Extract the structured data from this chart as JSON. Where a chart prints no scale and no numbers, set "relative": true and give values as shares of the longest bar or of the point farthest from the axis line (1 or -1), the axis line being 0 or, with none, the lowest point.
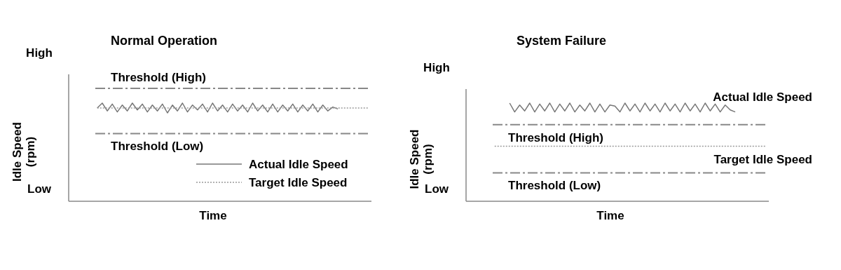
{
  "chart_data": [
    {
      "type": "line",
      "title": "Normal Operation",
      "xlabel": "Time",
      "ylabel": "Idle Speed\n(rpm)",
      "annotations": [
        "High",
        "Low"
      ],
      "relative": true,
      "legend": "bottom right",
      "categories": [
        null,
        null,
        null,
        null,
        null,
        null,
        null,
        null,
        null,
        null,
        null,
        null,
        null,
        null,
        null,
        null,
        null,
        null,
        null,
        null,
        null,
        null,
        null,
        null,
        null,
        null,
        null,
        null,
        null,
        null,
        null,
        null,
        null,
        null,
        null,
        null,
        null,
        null,
        null,
        null,
        null,
        null,
        null,
        null,
        null,
        null,
        null,
        null,
        null,
        null,
        null,
        null,
        null,
        null,
        null,
        null,
        null,
        null,
        null,
        null
      ],
      "ref_lines": [
        {
          "axis": "y",
          "value": 1.15,
          "label": "Threshold (High)",
          "color": "#888888",
          "line_style": "dashed"
        },
        {
          "axis": "y",
          "value": 0.69,
          "label": "Threshold (Low)",
          "color": "#888888",
          "line_style": "dashed"
        }
      ],
      "series": [
        {
          "name": "Actual Idle Speed",
          "color": "#777777",
          "line_style": "solid",
          "values": [
            null,
            null,
            null,
            null,
            null,
            0.95,
            1.0,
            0.92,
            0.99,
            0.91,
            0.98,
            0.92,
            1.0,
            0.93,
            0.99,
            0.91,
            0.98,
            0.92,
            0.99,
            0.9,
            0.98,
            0.92,
            1.0,
            0.91,
            0.98,
            0.93,
            0.99,
            0.91,
            1.0,
            0.92,
            0.98,
            0.91,
            0.99,
            0.92,
            0.98,
            0.91,
            1.0,
            0.92,
            0.98,
            0.91,
            0.99,
            0.91,
            0.98,
            0.92,
            0.99,
            0.91,
            0.98,
            0.92,
            0.99,
            0.91,
            0.98,
            0.92,
            0.96,
            0.94,
            null,
            null,
            null,
            null,
            null,
            null
          ]
        },
        {
          "name": "Target Idle Speed",
          "color": "#999999",
          "line_style": "dotted",
          "values": [
            null,
            null,
            null,
            null,
            null,
            0.95,
            0.95,
            0.95,
            0.95,
            0.95,
            0.95,
            0.95,
            0.95,
            0.95,
            0.95,
            0.95,
            0.95,
            0.95,
            0.95,
            0.95,
            0.95,
            0.95,
            0.95,
            0.95,
            0.95,
            0.95,
            0.95,
            0.95,
            0.95,
            0.95,
            0.95,
            0.95,
            0.95,
            0.95,
            0.95,
            0.95,
            0.95,
            0.95,
            0.95,
            0.95,
            0.95,
            0.95,
            0.95,
            0.95,
            0.95,
            0.95,
            0.95,
            0.95,
            0.95,
            0.95,
            0.95,
            0.95,
            0.95,
            0.95,
            0.95,
            0.95,
            0.95,
            0.95,
            0.95,
            0.95
          ]
        }
      ]
    },
    {
      "type": "line",
      "title": "System Failure",
      "xlabel": "Time",
      "ylabel": "Idle Speed\n(rpm)",
      "annotations": [
        "High",
        "Low"
      ],
      "relative": true,
      "categories": [
        null,
        null,
        null,
        null,
        null,
        null,
        null,
        null,
        null,
        null,
        null,
        null,
        null,
        null,
        null,
        null,
        null,
        null,
        null,
        null,
        null,
        null,
        null,
        null,
        null,
        null,
        null,
        null,
        null,
        null,
        null,
        null,
        null,
        null,
        null,
        null,
        null,
        null,
        null,
        null,
        null,
        null,
        null,
        null,
        null,
        null,
        null,
        null,
        null,
        null,
        null,
        null,
        null,
        null,
        null,
        null,
        null,
        null,
        null,
        null
      ],
      "ref_lines": [
        {
          "axis": "y",
          "value": 0.78,
          "label": "Threshold (High)",
          "color": "#888888",
          "line_style": "dashed"
        },
        {
          "axis": "y",
          "value": 0.29,
          "label": "Threshold (Low)",
          "color": "#888888",
          "line_style": "dashed"
        }
      ],
      "series": [
        {
          "name": "Actual Idle Speed",
          "color": "#777777",
          "line_style": "solid",
          "values": [
            null,
            null,
            null,
            null,
            null,
            null,
            null,
            null,
            1.0,
            0.91,
            0.98,
            0.92,
            1.0,
            0.91,
            0.99,
            0.92,
            1.0,
            0.91,
            0.99,
            0.92,
            1.0,
            0.91,
            0.98,
            0.92,
            1.0,
            0.91,
            0.99,
            0.91,
            0.98,
            0.97,
            0.91,
            1.0,
            0.92,
            0.99,
            0.91,
            1.0,
            0.92,
            0.99,
            0.91,
            1.0,
            0.92,
            0.99,
            0.91,
            1.0,
            0.92,
            0.99,
            0.91,
            1.0,
            0.92,
            0.99,
            0.91,
            0.98,
            0.93,
            0.91,
            null,
            null,
            null,
            null,
            null,
            null
          ]
        },
        {
          "name": "Target Idle Speed",
          "color": "#999999",
          "line_style": "dotted",
          "values": [
            null,
            null,
            null,
            null,
            null,
            0.56,
            0.56,
            0.56,
            0.56,
            0.56,
            0.56,
            0.56,
            0.56,
            0.56,
            0.56,
            0.56,
            0.56,
            0.56,
            0.56,
            0.56,
            0.56,
            0.56,
            0.56,
            0.56,
            0.56,
            0.56,
            0.56,
            0.56,
            0.56,
            0.56,
            0.56,
            0.56,
            0.56,
            0.56,
            0.56,
            0.56,
            0.56,
            0.56,
            0.56,
            0.56,
            0.56,
            0.56,
            0.56,
            0.56,
            0.56,
            0.56,
            0.56,
            0.56,
            0.56,
            0.56,
            0.56,
            0.56,
            0.56,
            0.56,
            0.56,
            0.56,
            0.56,
            0.56,
            0.56,
            0.56
          ]
        }
      ]
    }
  ]
}
